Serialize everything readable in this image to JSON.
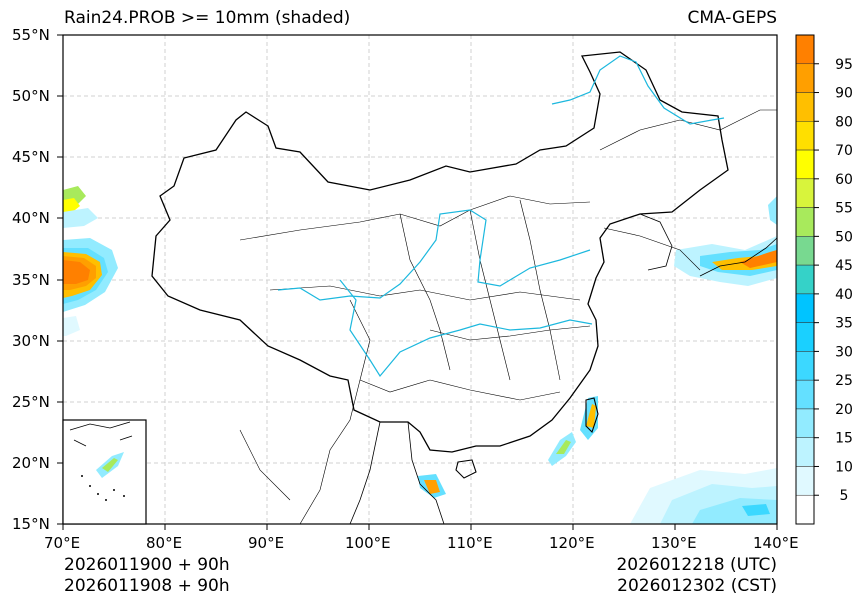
{
  "title": "Rain24.PROB >= 10mm (shaded)",
  "model": "CMA-GEPS",
  "axes": {
    "x_ticks": [
      "70°E",
      "80°E",
      "90°E",
      "100°E",
      "110°E",
      "120°E",
      "130°E",
      "140°E"
    ],
    "y_ticks": [
      "55°N",
      "50°N",
      "45°N",
      "40°N",
      "35°N",
      "30°N",
      "25°N",
      "20°N",
      "15°N"
    ]
  },
  "colorbar": {
    "ticks": [
      "95",
      "90",
      "80",
      "70",
      "60",
      "55",
      "50",
      "45",
      "40",
      "35",
      "30",
      "25",
      "20",
      "15",
      "10",
      "5"
    ],
    "colors": [
      "#ff8000",
      "#ff9f00",
      "#ffbf00",
      "#ffdf00",
      "#ffff00",
      "#d8f43c",
      "#a8ea5c",
      "#78d990",
      "#35d2c8",
      "#00c4ff",
      "#1ad0ff",
      "#3cd8ff",
      "#64e0ff",
      "#92ebff",
      "#bdf3ff",
      "#e0f9ff",
      "#ffffff"
    ]
  },
  "footer": {
    "init_utc": "2026011900 + 90h",
    "init_cst": "2026011908 + 90h",
    "valid_utc": "2026012218 (UTC)",
    "valid_cst": "2026012302 (CST)"
  }
}
